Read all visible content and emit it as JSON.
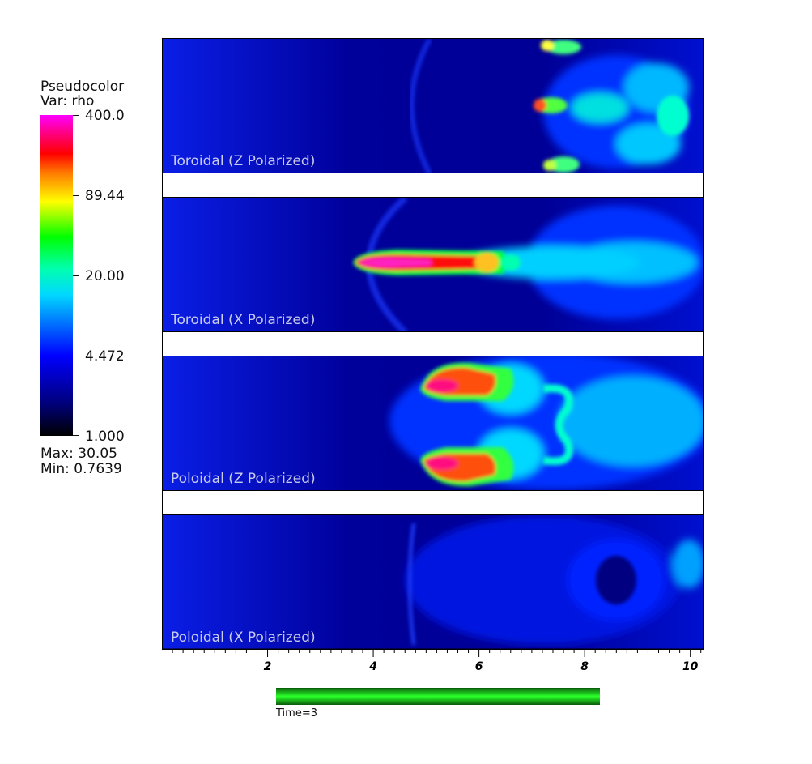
{
  "legend": {
    "title_line1": "Pseudocolor",
    "title_line2": "Var: rho",
    "labels": [
      "400.0",
      "89.44",
      "20.00",
      "4.472",
      "1.000"
    ],
    "max_text": "Max:  30.05",
    "min_text": "Min:  0.7639",
    "scale": "log",
    "colors": [
      "#000000",
      "#0000ff",
      "#00ffff",
      "#00ff00",
      "#ffff00",
      "#ff0000",
      "#ff00ff"
    ]
  },
  "panels": [
    {
      "label": "Toroidal (Z Polarized)"
    },
    {
      "label": "Toroidal (X Polarized)"
    },
    {
      "label": "Poloidal (Z Polarized)"
    },
    {
      "label": "Poloidal (X Polarized)"
    }
  ],
  "chart_data": {
    "type": "heatmap",
    "variable": "rho",
    "colorbar_range": [
      1.0,
      400.0
    ],
    "colorbar_ticks": [
      400.0,
      89.44,
      20.0,
      4.472,
      1.0
    ],
    "data_max": 30.05,
    "data_min": 0.7639,
    "x_ticks": [
      "2",
      "4",
      "6",
      "8",
      "10"
    ],
    "x_tick_values": [
      2,
      4,
      6,
      8,
      10
    ],
    "xlim": [
      0,
      10.25
    ]
  },
  "time": {
    "label": "Time=3",
    "color": "#1fd21f"
  }
}
